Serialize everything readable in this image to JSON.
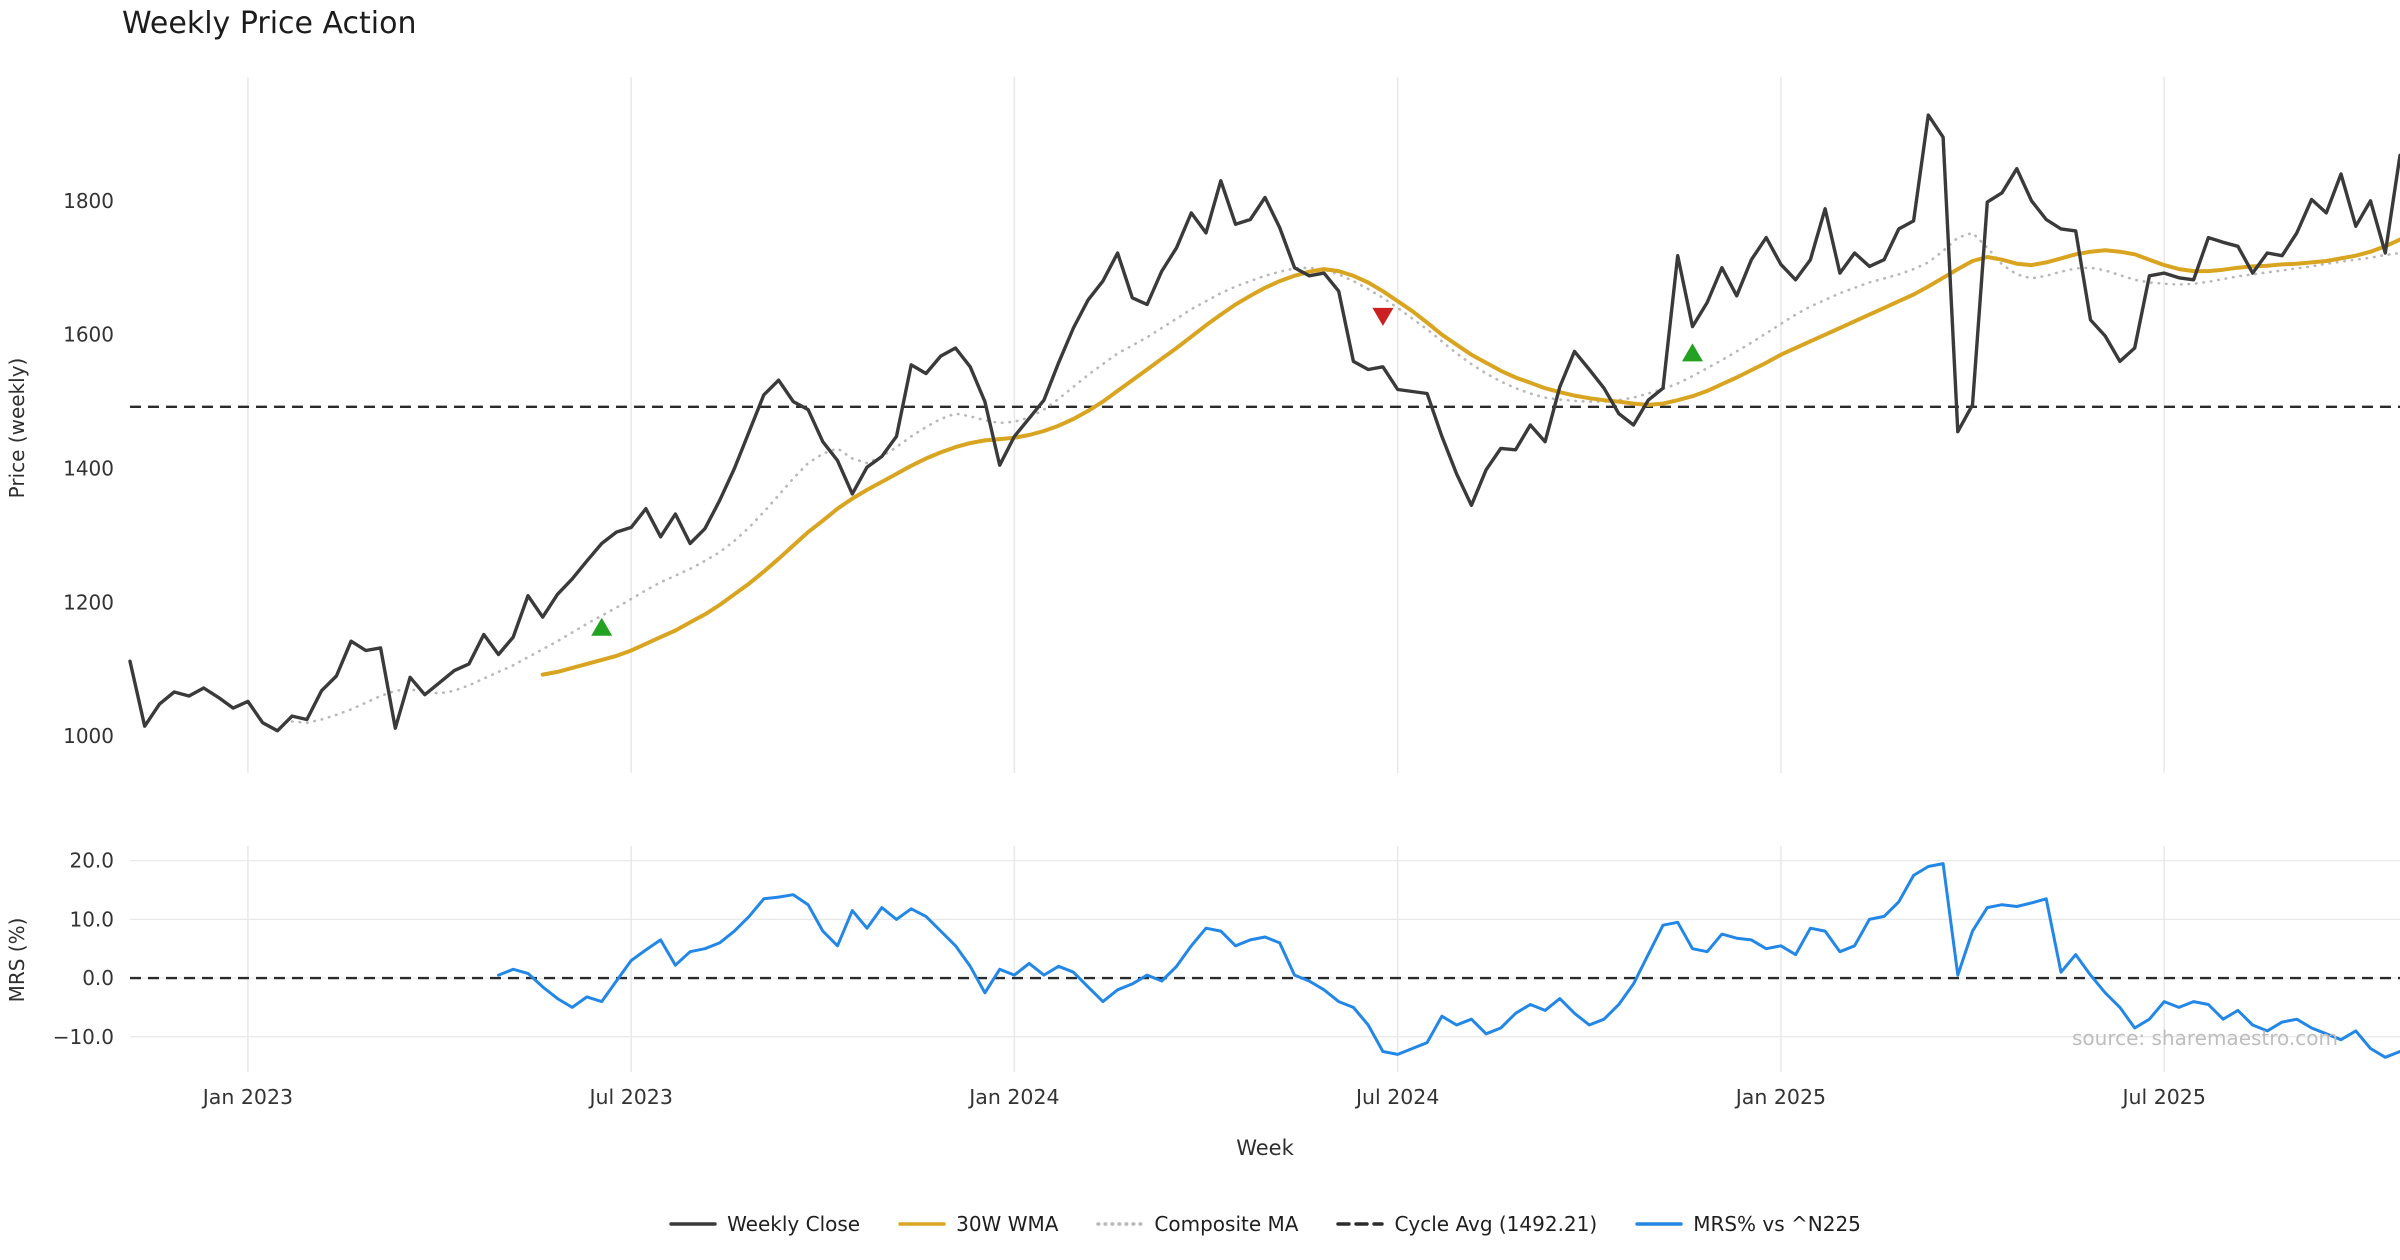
{
  "title": "Weekly Price Action",
  "watermark": "source: sharemaestro.com",
  "axes": {
    "price_ylabel": "Price (weekly)",
    "mrs_ylabel": "MRS (%)",
    "xlabel": "Week"
  },
  "legend": [
    {
      "label": "Weekly Close",
      "color": "#3a3a3a",
      "style": "solid"
    },
    {
      "label": "30W WMA",
      "color": "#d9a521",
      "style": "solid"
    },
    {
      "label": "Composite MA",
      "color": "#b8b8b8",
      "style": "dotted"
    },
    {
      "label": "Cycle Avg (1492.21)",
      "color": "#2b2b2b",
      "style": "dashed"
    },
    {
      "label": "MRS% vs ^N225",
      "color": "#2287e6",
      "style": "solid"
    }
  ],
  "chart_data": {
    "type": "line",
    "title": "Weekly Price Action",
    "xlabel": "Week",
    "x_unit": "week_index",
    "x_range": [
      0,
      154
    ],
    "x_ticks": [
      {
        "week": 8,
        "label": "Jan 2023"
      },
      {
        "week": 34,
        "label": "Jul 2023"
      },
      {
        "week": 60,
        "label": "Jan 2024"
      },
      {
        "week": 86,
        "label": "Jul 2024"
      },
      {
        "week": 112,
        "label": "Jan 2025"
      },
      {
        "week": 138,
        "label": "Jul 2025"
      }
    ],
    "colors": {
      "weekly_close": "#3a3a3a",
      "wma": "#d9a521",
      "composite": "#b8b8b8",
      "cycle_avg": "#2b2b2b",
      "mrs": "#2287e6",
      "buy_marker": "#22a122",
      "sell_marker": "#cc1f1f",
      "grid": "#e8e8e8",
      "tick_text": "#333333"
    },
    "panels": [
      {
        "name": "price",
        "ylabel": "Price (weekly)",
        "ylim": [
          945,
          1985
        ],
        "h_grid": false,
        "ref_line": 1492.21,
        "y_ticks": [
          {
            "value": 1000,
            "label": "1000"
          },
          {
            "value": 1200,
            "label": "1200"
          },
          {
            "value": 1400,
            "label": "1400"
          },
          {
            "value": 1600,
            "label": "1600"
          },
          {
            "value": 1800,
            "label": "1800"
          }
        ],
        "series": [
          {
            "name": "Composite MA",
            "data_name": "composite-ma-line",
            "color": "#b8b8b8",
            "width": 2.6,
            "dash": "0.5 7",
            "start_week": 11,
            "values": [
              1022,
              1020,
              1025,
              1032,
              1040,
              1050,
              1060,
              1068,
              1070,
              1066,
              1064,
              1068,
              1076,
              1086,
              1096,
              1106,
              1118,
              1130,
              1142,
              1155,
              1168,
              1180,
              1192,
              1205,
              1218,
              1230,
              1240,
              1250,
              1262,
              1275,
              1292,
              1312,
              1335,
              1360,
              1385,
              1408,
              1422,
              1430,
              1415,
              1408,
              1418,
              1432,
              1448,
              1462,
              1474,
              1482,
              1478,
              1472,
              1468,
              1470,
              1476,
              1488,
              1504,
              1522,
              1540,
              1556,
              1572,
              1584,
              1596,
              1610,
              1624,
              1638,
              1650,
              1662,
              1672,
              1680,
              1688,
              1694,
              1699,
              1700,
              1697,
              1690,
              1680,
              1668,
              1655,
              1640,
              1624,
              1608,
              1590,
              1572,
              1556,
              1542,
              1530,
              1520,
              1512,
              1506,
              1503,
              1501,
              1500,
              1500,
              1502,
              1506,
              1512,
              1519,
              1527,
              1538,
              1550,
              1562,
              1575,
              1588,
              1602,
              1616,
              1630,
              1642,
              1652,
              1662,
              1670,
              1678,
              1684,
              1690,
              1698,
              1708,
              1725,
              1745,
              1752,
              1730,
              1705,
              1690,
              1684,
              1688,
              1694,
              1699,
              1700,
              1696,
              1689,
              1682,
              1678,
              1676,
              1675,
              1676,
              1679,
              1683,
              1687,
              1690,
              1693,
              1696,
              1699,
              1702,
              1706,
              1709,
              1712,
              1715,
              1719,
              1722
            ]
          },
          {
            "name": "30W WMA",
            "data_name": "wma-line",
            "color": "#d9a521",
            "width": 4,
            "start_week": 28,
            "values": [
              1092,
              1096,
              1102,
              1108,
              1114,
              1120,
              1128,
              1138,
              1148,
              1158,
              1170,
              1182,
              1196,
              1212,
              1228,
              1246,
              1265,
              1285,
              1305,
              1322,
              1340,
              1355,
              1368,
              1380,
              1392,
              1404,
              1415,
              1424,
              1432,
              1438,
              1442,
              1444,
              1446,
              1450,
              1456,
              1464,
              1474,
              1486,
              1500,
              1516,
              1532,
              1548,
              1564,
              1580,
              1597,
              1614,
              1630,
              1645,
              1658,
              1670,
              1680,
              1688,
              1694,
              1698,
              1695,
              1688,
              1678,
              1665,
              1650,
              1635,
              1618,
              1600,
              1585,
              1570,
              1558,
              1546,
              1536,
              1528,
              1520,
              1514,
              1509,
              1505,
              1502,
              1500,
              1497,
              1495,
              1497,
              1502,
              1508,
              1516,
              1526,
              1536,
              1547,
              1558,
              1570,
              1580,
              1590,
              1600,
              1610,
              1620,
              1630,
              1640,
              1650,
              1660,
              1672,
              1685,
              1698,
              1710,
              1716,
              1712,
              1706,
              1704,
              1708,
              1714,
              1720,
              1724,
              1726,
              1724,
              1720,
              1712,
              1704,
              1698,
              1695,
              1695,
              1697,
              1700,
              1702,
              1703,
              1705,
              1706,
              1708,
              1710,
              1714,
              1718,
              1724,
              1732,
              1742
            ]
          },
          {
            "name": "Weekly Close",
            "data_name": "weekly-close-line",
            "color": "#3a3a3a",
            "width": 3.4,
            "start_week": 0,
            "values": [
              1112,
              1015,
              1048,
              1066,
              1060,
              1072,
              1058,
              1042,
              1052,
              1020,
              1008,
              1030,
              1025,
              1068,
              1090,
              1142,
              1128,
              1132,
              1012,
              1088,
              1062,
              1080,
              1098,
              1108,
              1152,
              1122,
              1148,
              1210,
              1178,
              1212,
              1235,
              1262,
              1288,
              1305,
              1312,
              1340,
              1298,
              1332,
              1288,
              1310,
              1352,
              1400,
              1455,
              1510,
              1532,
              1500,
              1488,
              1440,
              1412,
              1362,
              1402,
              1418,
              1448,
              1555,
              1542,
              1568,
              1580,
              1552,
              1500,
              1405,
              1448,
              1475,
              1502,
              1558,
              1610,
              1652,
              1680,
              1722,
              1655,
              1645,
              1695,
              1730,
              1782,
              1752,
              1830,
              1765,
              1772,
              1805,
              1760,
              1700,
              1688,
              1692,
              1665,
              1560,
              1548,
              1552,
              1518,
              1515,
              1512,
              1448,
              1392,
              1345,
              1398,
              1430,
              1428,
              1465,
              1440,
              1522,
              1575,
              1548,
              1520,
              1482,
              1465,
              1502,
              1520,
              1718,
              1612,
              1648,
              1700,
              1658,
              1712,
              1745,
              1705,
              1682,
              1712,
              1788,
              1692,
              1722,
              1702,
              1712,
              1758,
              1770,
              1928,
              1895,
              1455,
              1495,
              1798,
              1812,
              1848,
              1800,
              1772,
              1758,
              1755,
              1622,
              1598,
              1560,
              1580,
              1688,
              1692,
              1685,
              1682,
              1745,
              1738,
              1732,
              1692,
              1722,
              1718,
              1752,
              1802,
              1782,
              1840,
              1762,
              1800,
              1722,
              1868
            ]
          }
        ],
        "markers": [
          {
            "type": "buy",
            "week": 32,
            "value": 1162
          },
          {
            "type": "sell",
            "week": 85,
            "value": 1628
          },
          {
            "type": "buy",
            "week": 106,
            "value": 1572
          }
        ]
      },
      {
        "name": "mrs",
        "ylabel": "MRS (%)",
        "ylim": [
          -16,
          22.5
        ],
        "h_grid": true,
        "ref_line": 0,
        "y_ticks": [
          {
            "value": -10,
            "label": "−10.0"
          },
          {
            "value": 0,
            "label": "0.0"
          },
          {
            "value": 10,
            "label": "10.0"
          },
          {
            "value": 20,
            "label": "20.0"
          }
        ],
        "series": [
          {
            "name": "MRS% vs ^N225",
            "data_name": "mrs-line",
            "color": "#2287e6",
            "width": 3,
            "start_week": 25,
            "values": [
              0.5,
              1.5,
              0.8,
              -1.5,
              -3.5,
              -5.0,
              -3.2,
              -4.0,
              -0.5,
              3.0,
              4.8,
              6.5,
              2.2,
              4.5,
              5.0,
              6.0,
              8.0,
              10.5,
              13.5,
              13.8,
              14.2,
              12.5,
              8.0,
              5.5,
              11.5,
              8.5,
              12.0,
              10.0,
              11.8,
              10.5,
              8.0,
              5.5,
              2.0,
              -2.5,
              1.5,
              0.5,
              2.5,
              0.5,
              2.0,
              1.0,
              -1.5,
              -4.0,
              -2.0,
              -1.0,
              0.5,
              -0.5,
              2.0,
              5.5,
              8.5,
              8.0,
              5.5,
              6.5,
              7.0,
              6.0,
              0.5,
              -0.5,
              -2.0,
              -4.0,
              -5.0,
              -8.0,
              -12.5,
              -13.0,
              -12.0,
              -11.0,
              -6.5,
              -8.0,
              -7.0,
              -9.5,
              -8.5,
              -6.0,
              -4.5,
              -5.5,
              -3.5,
              -6.0,
              -8.0,
              -7.0,
              -4.5,
              -1.0,
              4.0,
              9.0,
              9.5,
              5.0,
              4.5,
              7.5,
              6.8,
              6.5,
              5.0,
              5.5,
              4.0,
              8.5,
              8.0,
              4.5,
              5.5,
              10.0,
              10.5,
              13.0,
              17.5,
              19.0,
              19.5,
              0.5,
              8.0,
              12.0,
              12.5,
              12.2,
              12.8,
              13.5,
              1.0,
              4.0,
              0.5,
              -2.5,
              -5.0,
              -8.5,
              -7.0,
              -4.0,
              -5.0,
              -4.0,
              -4.5,
              -7.0,
              -5.5,
              -8.0,
              -9.0,
              -7.5,
              -7.0,
              -8.5,
              -9.5,
              -10.5,
              -9.0,
              -12.0,
              -13.5,
              -12.5
            ]
          }
        ],
        "markers": []
      }
    ]
  }
}
